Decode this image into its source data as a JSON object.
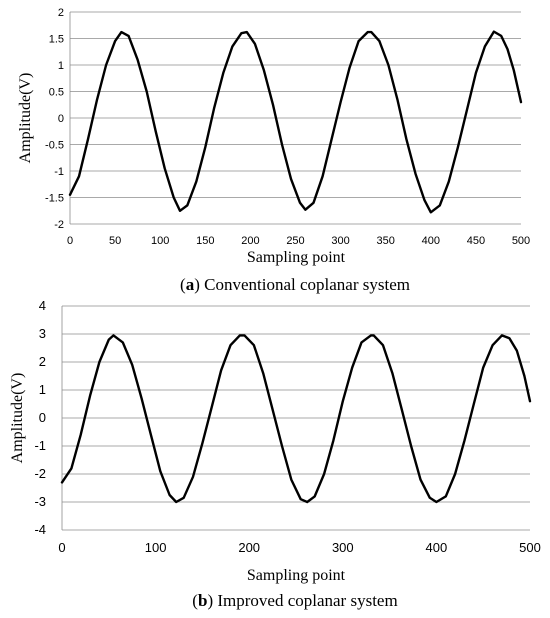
{
  "chart_data": [
    {
      "type": "line",
      "caption_letter": "a",
      "caption_text": "Conventional coplanar system",
      "xlabel": "Sampling point",
      "ylabel": "Amplitude(V)",
      "xlim": [
        0,
        500
      ],
      "ylim": [
        -2,
        2
      ],
      "xticks": [
        "0",
        "50",
        "100",
        "150",
        "200",
        "250",
        "300",
        "350",
        "400",
        "450",
        "500"
      ],
      "yticks": [
        "2",
        "1.5",
        "1",
        "0.5",
        "0",
        "-0.5",
        "-1",
        "-1.5",
        "-2"
      ],
      "grid": "horizontal",
      "line_color": "#000000",
      "series": [
        {
          "x": [
            0,
            10,
            20,
            30,
            40,
            50,
            57,
            65,
            75,
            85,
            95,
            105,
            115,
            122,
            130,
            140,
            150,
            160,
            170,
            180,
            190,
            196,
            205,
            215,
            225,
            235,
            245,
            255,
            261,
            270,
            280,
            290,
            300,
            310,
            320,
            330,
            334,
            343,
            353,
            363,
            373,
            383,
            393,
            400,
            410,
            420,
            430,
            440,
            450,
            460,
            470,
            478,
            485,
            492,
            500
          ],
          "y": [
            -1.45,
            -1.1,
            -0.4,
            0.35,
            1.0,
            1.45,
            1.62,
            1.55,
            1.1,
            0.5,
            -0.25,
            -0.95,
            -1.5,
            -1.75,
            -1.65,
            -1.2,
            -0.55,
            0.2,
            0.85,
            1.35,
            1.6,
            1.62,
            1.4,
            0.9,
            0.25,
            -0.5,
            -1.15,
            -1.6,
            -1.73,
            -1.6,
            -1.1,
            -0.4,
            0.3,
            0.95,
            1.45,
            1.62,
            1.62,
            1.45,
            1.0,
            0.35,
            -0.4,
            -1.05,
            -1.55,
            -1.78,
            -1.65,
            -1.2,
            -0.55,
            0.15,
            0.85,
            1.35,
            1.63,
            1.55,
            1.3,
            0.9,
            0.3
          ]
        }
      ]
    },
    {
      "type": "line",
      "caption_letter": "b",
      "caption_text": "Improved coplanar system",
      "xlabel": "Sampling point",
      "ylabel": "Amplitude(V)",
      "xlim": [
        0,
        500
      ],
      "ylim": [
        -4,
        4
      ],
      "xticks": [
        "0",
        "100",
        "200",
        "300",
        "400",
        "500"
      ],
      "yticks": [
        "4",
        "3",
        "2",
        "1",
        "0",
        "-1",
        "-2",
        "-3",
        "-4"
      ],
      "grid": "horizontal",
      "line_color": "#000000",
      "series": [
        {
          "x": [
            0,
            10,
            20,
            30,
            40,
            50,
            55,
            65,
            75,
            85,
            95,
            105,
            115,
            122,
            130,
            140,
            150,
            160,
            170,
            180,
            190,
            195,
            205,
            215,
            225,
            235,
            245,
            255,
            262,
            270,
            280,
            290,
            300,
            310,
            320,
            330,
            333,
            343,
            353,
            363,
            373,
            383,
            393,
            400,
            410,
            420,
            430,
            440,
            450,
            460,
            470,
            478,
            486,
            494,
            500
          ],
          "y": [
            -2.3,
            -1.8,
            -0.6,
            0.8,
            2.0,
            2.8,
            2.95,
            2.7,
            1.9,
            0.7,
            -0.6,
            -1.9,
            -2.75,
            -3.0,
            -2.85,
            -2.1,
            -0.9,
            0.4,
            1.7,
            2.6,
            2.95,
            2.95,
            2.6,
            1.6,
            0.3,
            -1.0,
            -2.2,
            -2.9,
            -3.0,
            -2.8,
            -2.0,
            -0.8,
            0.6,
            1.8,
            2.7,
            2.95,
            2.95,
            2.6,
            1.6,
            0.3,
            -1.0,
            -2.2,
            -2.85,
            -3.0,
            -2.8,
            -2.0,
            -0.8,
            0.5,
            1.8,
            2.6,
            2.95,
            2.85,
            2.4,
            1.5,
            0.6
          ]
        }
      ]
    }
  ]
}
